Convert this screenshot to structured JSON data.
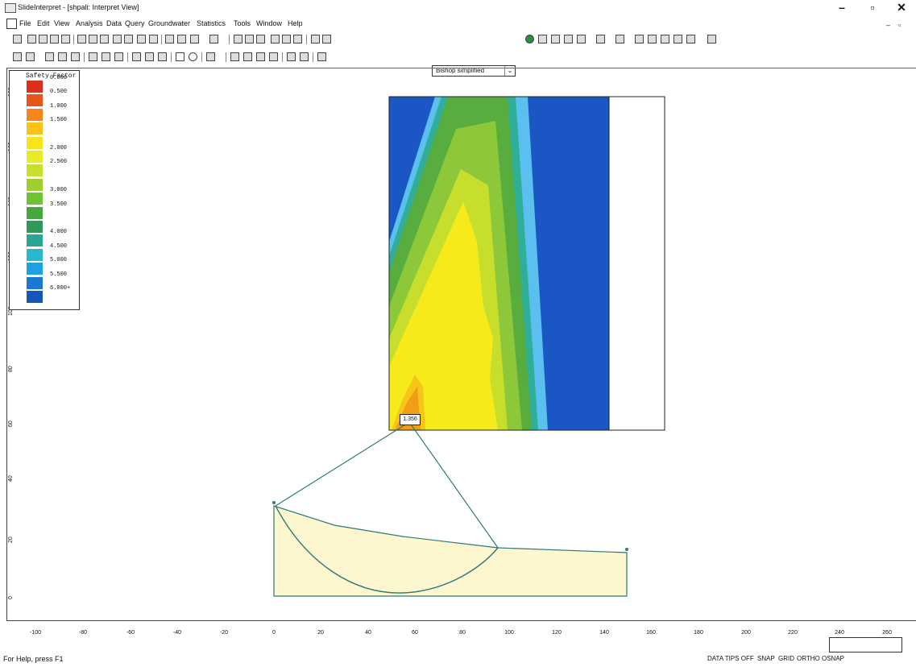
{
  "window": {
    "title": "SlideInterpret - [shpali: Interpret View]",
    "minimize": "–",
    "restore": "▫",
    "close": "✕"
  },
  "menu": [
    "File",
    "Edit",
    "View",
    "Analysis",
    "Data",
    "Query",
    "Groundwater",
    "Statistics",
    "Tools",
    "Window",
    "Help"
  ],
  "toolbar": {
    "method_combo": "Bishop simplified",
    "chevron": "⌄"
  },
  "legend": {
    "title": "Safety Factor",
    "items": [
      {
        "label": "0.000",
        "color": "#d8301c"
      },
      {
        "label": "0.500",
        "color": "#e8551c"
      },
      {
        "label": "1.000",
        "color": "#f7851c"
      },
      {
        "label": "1.500",
        "color": "#fbc318"
      },
      {
        "label": "",
        "color": "#f7e41c"
      },
      {
        "label": "2.000",
        "color": "#e6ec25"
      },
      {
        "label": "2.500",
        "color": "#c6e02c"
      },
      {
        "label": "",
        "color": "#9ecf2e"
      },
      {
        "label": "3.000",
        "color": "#6ec234"
      },
      {
        "label": "3.500",
        "color": "#46a83c"
      },
      {
        "label": "",
        "color": "#2f9a58"
      },
      {
        "label": "4.000",
        "color": "#2aa593"
      },
      {
        "label": "4.500",
        "color": "#29b6cf"
      },
      {
        "label": "5.000",
        "color": "#1ea0e1"
      },
      {
        "label": "5.500",
        "color": "#1978d0"
      },
      {
        "label": "6.000+",
        "color": "#1557b8"
      }
    ]
  },
  "plot": {
    "min_fs_label": "1.356",
    "colors": {
      "blue": "#1a56c4",
      "light_blue": "#5bc0ef",
      "green": "#58ad3e",
      "yellow": "#f6ea1a",
      "orange": "#f19d16",
      "slope_fill": "#fcf7cf",
      "slope_line": "#2d7a77"
    }
  },
  "ruler": {
    "x_ticks": [
      "-100",
      "-80",
      "-60",
      "-40",
      "-20",
      "0",
      "20",
      "40",
      "60",
      "80",
      "100",
      "120",
      "140",
      "160",
      "180",
      "200",
      "220",
      "240",
      "260"
    ],
    "y_ticks": [
      "180",
      "160",
      "140",
      "120",
      "100",
      "80",
      "60",
      "40",
      "20",
      "0"
    ]
  },
  "status": {
    "help": "For Help, press F1",
    "items": [
      "DATA TIPS OFF",
      "SNAP",
      "GRID",
      "ORTHO",
      "OSNAP"
    ]
  }
}
